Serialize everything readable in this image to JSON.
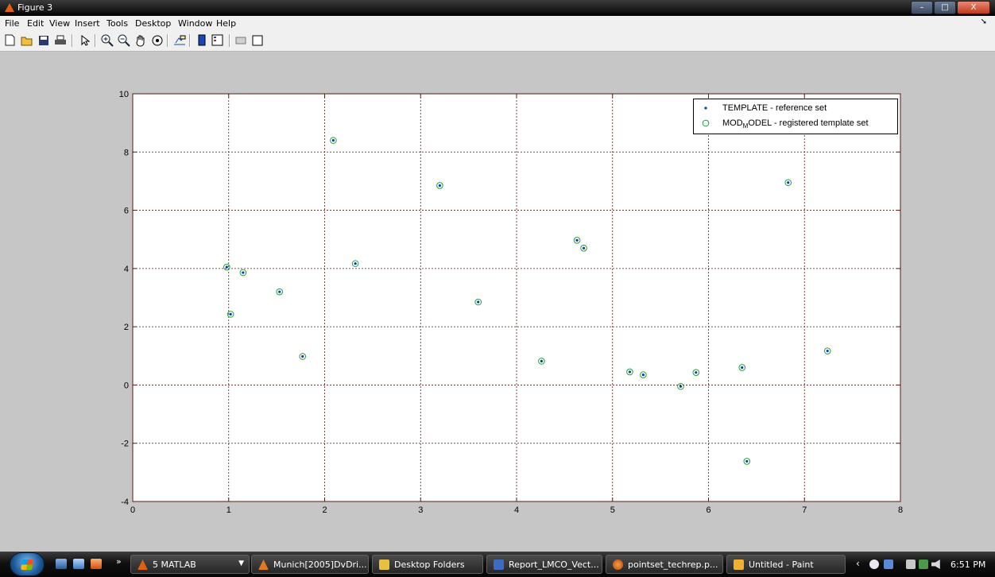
{
  "window": {
    "title": "Figure 3",
    "controls": {
      "minimize": "–",
      "maximize": "□",
      "close": "X"
    }
  },
  "menu": [
    "File",
    "Edit",
    "View",
    "Insert",
    "Tools",
    "Desktop",
    "Window",
    "Help"
  ],
  "toolbar": {
    "buttons": [
      {
        "name": "new-figure-icon",
        "glyph": "🗋"
      },
      {
        "name": "open-file-icon",
        "glyph": "📂"
      },
      {
        "name": "save-icon",
        "glyph": "💾"
      },
      {
        "name": "print-icon",
        "glyph": "🖶"
      },
      {
        "name": "edit-plot-arrow-icon",
        "glyph": "↖"
      },
      {
        "name": "zoom-in-icon",
        "glyph": "🔍"
      },
      {
        "name": "zoom-out-icon",
        "glyph": "🔎"
      },
      {
        "name": "pan-hand-icon",
        "glyph": "✋"
      },
      {
        "name": "rotate-3d-icon",
        "glyph": "⟳"
      },
      {
        "name": "data-cursor-icon",
        "glyph": "✦"
      },
      {
        "name": "colorbar-icon",
        "glyph": "▮"
      },
      {
        "name": "legend-icon",
        "glyph": "▤"
      },
      {
        "name": "hide-plot-tools-icon",
        "glyph": "▭"
      },
      {
        "name": "show-plot-tools-icon",
        "glyph": "▢"
      }
    ]
  },
  "chart_data": {
    "type": "scatter",
    "title": "",
    "xlabel": "",
    "ylabel": "",
    "xlim": [
      0,
      8
    ],
    "ylim": [
      -4,
      10
    ],
    "xticks": [
      "0",
      "1",
      "2",
      "3",
      "4",
      "5",
      "6",
      "7",
      "8"
    ],
    "yticks": [
      "-4",
      "-2",
      "0",
      "2",
      "4",
      "6",
      "8",
      "10"
    ],
    "grid": true,
    "legend_position": "top-right",
    "colors": {
      "template": "#0a3f9e",
      "model": "#1ea03a"
    },
    "series": [
      {
        "name": "TEMPLATE - reference set",
        "marker": "dot",
        "points": [
          [
            0.98,
            4.05
          ],
          [
            1.02,
            2.43
          ],
          [
            1.15,
            3.86
          ],
          [
            1.53,
            3.2
          ],
          [
            1.77,
            0.98
          ],
          [
            2.09,
            8.4
          ],
          [
            2.32,
            4.17
          ],
          [
            3.2,
            6.85
          ],
          [
            3.6,
            2.85
          ],
          [
            4.26,
            0.82
          ],
          [
            4.63,
            4.97
          ],
          [
            4.7,
            4.7
          ],
          [
            5.18,
            0.45
          ],
          [
            5.32,
            0.35
          ],
          [
            5.71,
            -0.05
          ],
          [
            5.87,
            0.43
          ],
          [
            6.35,
            0.6
          ],
          [
            6.4,
            -2.62
          ],
          [
            6.83,
            6.95
          ],
          [
            7.24,
            1.17
          ]
        ]
      },
      {
        "name_parts": [
          "MOD",
          "M",
          "ODEL - registered template set"
        ],
        "marker": "circle",
        "points": [
          [
            0.98,
            4.05
          ],
          [
            1.02,
            2.43
          ],
          [
            1.15,
            3.86
          ],
          [
            1.53,
            3.2
          ],
          [
            1.77,
            0.98
          ],
          [
            2.09,
            8.4
          ],
          [
            2.32,
            4.17
          ],
          [
            3.2,
            6.85
          ],
          [
            3.6,
            2.85
          ],
          [
            4.26,
            0.82
          ],
          [
            4.63,
            4.97
          ],
          [
            4.7,
            4.7
          ],
          [
            5.18,
            0.45
          ],
          [
            5.32,
            0.35
          ],
          [
            5.71,
            -0.05
          ],
          [
            5.87,
            0.43
          ],
          [
            6.35,
            0.6
          ],
          [
            6.4,
            -2.62
          ],
          [
            6.83,
            6.95
          ],
          [
            7.24,
            1.17
          ]
        ]
      }
    ]
  },
  "taskbar": {
    "items": [
      {
        "label": "5 MATLAB",
        "icon": "matlab-icon",
        "color": "#e06010"
      },
      {
        "label": "Munich[2005]DvDri...",
        "icon": "matlab-doc-icon",
        "color": "#e07a20"
      },
      {
        "label": "Desktop Folders",
        "icon": "folder-icon",
        "color": "#e8c040"
      },
      {
        "label": "Report_LMCO_Vect...",
        "icon": "word-doc-icon",
        "color": "#3d6bc4"
      },
      {
        "label": "pointset_techrep.p...",
        "icon": "firefox-icon",
        "color": "#e87a20"
      },
      {
        "label": "Untitled - Paint",
        "icon": "paint-icon",
        "color": "#f0b030"
      }
    ],
    "clock": "6:51 PM"
  }
}
